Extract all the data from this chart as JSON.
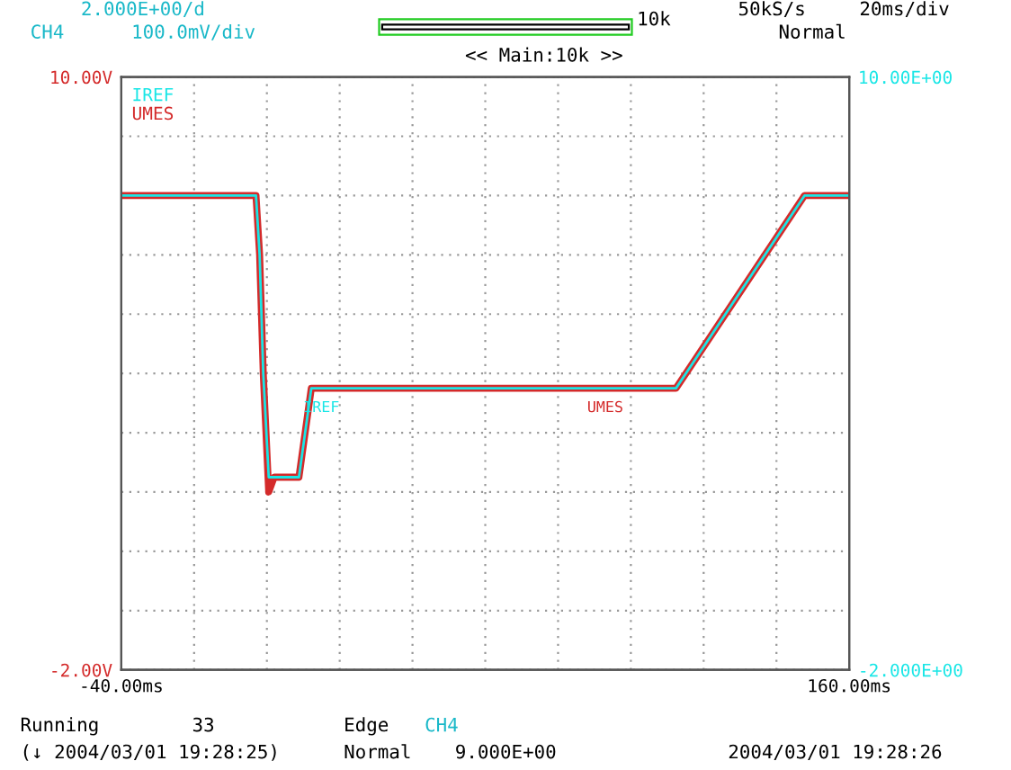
{
  "chart_data": {
    "type": "line",
    "series": [
      {
        "name": "IREF",
        "color": "#19e6e6",
        "axis": "y2",
        "x": [
          -40,
          -3,
          -2,
          -1,
          0.5,
          1,
          8.8,
          12.2,
          112.4,
          147.7,
          160
        ],
        "values": [
          7.6,
          7.6,
          6.4,
          4.0,
          1.9,
          1.9,
          1.9,
          3.7,
          3.7,
          7.6,
          7.6
        ]
      },
      {
        "name": "UMES",
        "color": "#d42a2a",
        "x": [
          -40,
          -3,
          -2,
          -1,
          0.5,
          1,
          2,
          8.8,
          12.2,
          112.4,
          147.7,
          160
        ],
        "values": [
          7.6,
          7.6,
          6.4,
          4.0,
          1.6,
          1.7,
          1.9,
          1.9,
          3.7,
          3.7,
          7.6,
          7.6
        ]
      }
    ],
    "xlim": [
      -40,
      160
    ],
    "xticks": [
      {
        "value": -40,
        "label": "-40.00ms"
      },
      {
        "value": -20,
        "label": null
      },
      {
        "value": 0,
        "label": null
      },
      {
        "value": 20,
        "label": null
      },
      {
        "value": 40,
        "label": null
      },
      {
        "value": 60,
        "label": null
      },
      {
        "value": 80,
        "label": null
      },
      {
        "value": 100,
        "label": null
      },
      {
        "value": 120,
        "label": null
      },
      {
        "value": 140,
        "label": null
      },
      {
        "value": 160,
        "label": "160.00ms"
      }
    ],
    "ylim": [
      -2,
      10
    ],
    "yticks": [
      {
        "value": -2,
        "label": "-2.00V"
      },
      {
        "value": -0.8,
        "label": null
      },
      {
        "value": 0.4,
        "label": null
      },
      {
        "value": 1.6,
        "label": null
      },
      {
        "value": 2.8,
        "label": null
      },
      {
        "value": 4.0,
        "label": null
      },
      {
        "value": 5.2,
        "label": null
      },
      {
        "value": 6.4,
        "label": null
      },
      {
        "value": 7.6,
        "label": null
      },
      {
        "value": 8.8,
        "label": null
      },
      {
        "value": 10,
        "label": "10.00V"
      }
    ],
    "y2lim": [
      -2,
      10
    ],
    "y2ticks": [
      {
        "value": -2,
        "label": "-2.000E+00"
      },
      {
        "value": 10,
        "label": "10.00E+00"
      }
    ],
    "grid": true,
    "legend": "top left",
    "annotations": [
      "2.000E+00/d",
      "CH4",
      "100.0mV/div",
      "10k",
      "50kS/s",
      "20ms/div",
      "Normal",
      "<< Main:10k >>",
      "Running",
      "33",
      "(↓ 2004/03/01 19:28:25)",
      "Edge",
      "CH4",
      "Normal",
      "9.000E+00",
      "2004/03/01 19:28:26",
      {
        "text": "IREF",
        "x": 10,
        "y": 3.45
      },
      {
        "text": "UMES",
        "x": 88,
        "y": 3.45
      }
    ]
  }
}
